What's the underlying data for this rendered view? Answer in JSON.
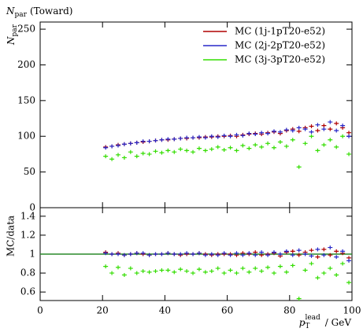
{
  "chart_data": [
    {
      "type": "scatter",
      "title": {
        "symbol": "N",
        "subscript": "par",
        "suffix": "(Toward)"
      },
      "y_label": {
        "symbol": "N",
        "subscript": "par"
      },
      "legend": "upper right",
      "xlim": [
        0,
        100
      ],
      "ylim": [
        0,
        260
      ],
      "yticks": [
        0,
        50,
        100,
        150,
        200,
        250
      ],
      "x": [
        21,
        23,
        25,
        27,
        29,
        31,
        33,
        35,
        37,
        39,
        41,
        43,
        45,
        47,
        49,
        51,
        53,
        55,
        57,
        59,
        61,
        63,
        65,
        67,
        69,
        71,
        73,
        75,
        77,
        79,
        81,
        83,
        85,
        87,
        89,
        91,
        93,
        95,
        97,
        99
      ],
      "series": [
        {
          "name": "MC (1j-1pT20-e52)",
          "color": "#b00000",
          "values": [
            85,
            86,
            88,
            89,
            90,
            91,
            92,
            93,
            94,
            95,
            95,
            96,
            97,
            97,
            98,
            98,
            99,
            99,
            100,
            100,
            101,
            100,
            102,
            103,
            104,
            103,
            105,
            106,
            104,
            108,
            110,
            107,
            112,
            114,
            108,
            115,
            110,
            118,
            112,
            105
          ]
        },
        {
          "name": "MC (2j-2pT20-e52)",
          "color": "#2828c8",
          "values": [
            84,
            86,
            87,
            89,
            90,
            91,
            93,
            93,
            94,
            95,
            96,
            96,
            97,
            98,
            98,
            99,
            98,
            100,
            99,
            101,
            100,
            102,
            101,
            104,
            103,
            105,
            104,
            107,
            106,
            109,
            108,
            112,
            110,
            106,
            116,
            110,
            120,
            108,
            115,
            100
          ]
        },
        {
          "name": "MC (3j-3pT20-e52)",
          "color": "#33dd00",
          "values": [
            72,
            68,
            74,
            70,
            78,
            72,
            76,
            75,
            79,
            77,
            80,
            78,
            82,
            80,
            78,
            83,
            80,
            82,
            85,
            81,
            84,
            80,
            87,
            83,
            88,
            85,
            90,
            84,
            92,
            86,
            95,
            57,
            90,
            100,
            80,
            88,
            95,
            85,
            100,
            75
          ]
        }
      ]
    },
    {
      "type": "scatter",
      "y_label": "MC/data",
      "x_label": {
        "symbol": "p",
        "subscript": "T",
        "superscript": "lead",
        "suffix": "/ GeV"
      },
      "xlim": [
        0,
        100
      ],
      "ylim": [
        0.51,
        1.49
      ],
      "xticks": [
        0,
        20,
        40,
        60,
        80,
        100
      ],
      "yticks": [
        0.6,
        0.8,
        1,
        1.2,
        1.4
      ],
      "x": [
        21,
        23,
        25,
        27,
        29,
        31,
        33,
        35,
        37,
        39,
        41,
        43,
        45,
        47,
        49,
        51,
        53,
        55,
        57,
        59,
        61,
        63,
        65,
        67,
        69,
        71,
        73,
        75,
        77,
        79,
        81,
        83,
        85,
        87,
        89,
        91,
        93,
        95,
        97,
        99
      ],
      "series": [
        {
          "color": "#b00000",
          "values": [
            1.02,
            1.0,
            1.01,
            0.99,
            1.0,
            1.01,
            1.0,
            0.99,
            1.0,
            1.0,
            1.01,
            1.0,
            0.99,
            1.0,
            1.0,
            1.01,
            1.0,
            0.99,
            1.0,
            1.0,
            1.0,
            0.99,
            1.01,
            1.0,
            1.02,
            0.99,
            1.0,
            1.01,
            0.98,
            1.02,
            1.03,
            0.99,
            1.02,
            1.04,
            0.97,
            1.05,
            0.99,
            1.03,
            1.01,
            0.96
          ]
        },
        {
          "color": "#2828c8",
          "values": [
            1.01,
            1.0,
            1.0,
            0.99,
            1.0,
            1.01,
            1.01,
            0.99,
            1.0,
            1.0,
            1.01,
            1.0,
            1.0,
            1.01,
            1.0,
            1.01,
            0.99,
            1.0,
            0.99,
            1.01,
            0.99,
            1.01,
            0.99,
            1.01,
            0.99,
            1.02,
            0.99,
            1.02,
            1.0,
            1.03,
            0.99,
            1.04,
            1.0,
            0.98,
            1.05,
            0.99,
            1.07,
            0.97,
            1.03,
            0.93
          ]
        },
        {
          "color": "#33dd00",
          "values": [
            0.87,
            0.8,
            0.86,
            0.78,
            0.85,
            0.8,
            0.82,
            0.81,
            0.82,
            0.83,
            0.83,
            0.81,
            0.84,
            0.82,
            0.8,
            0.84,
            0.81,
            0.82,
            0.85,
            0.8,
            0.83,
            0.8,
            0.85,
            0.81,
            0.85,
            0.82,
            0.86,
            0.8,
            0.87,
            0.81,
            0.88,
            0.53,
            0.83,
            0.9,
            0.75,
            0.8,
            0.85,
            0.78,
            0.9,
            0.7
          ]
        }
      ]
    }
  ]
}
